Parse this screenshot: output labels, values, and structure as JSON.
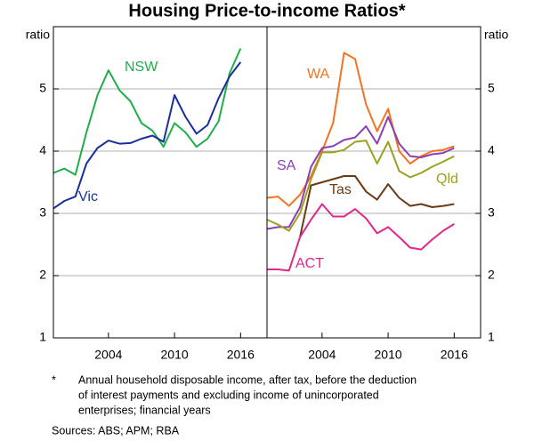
{
  "title": "Housing Price-to-income Ratios*",
  "footnote_marker": "*",
  "footnote": [
    "Annual household disposable income, after tax, before the deduction",
    "of interest payments and excluding income of unincorporated",
    "enterprises; financial years"
  ],
  "sources": "Sources:   ABS; APM; RBA",
  "chart_data": [
    {
      "type": "line",
      "ylabel": "ratio",
      "x": [
        1999,
        2000,
        2001,
        2002,
        2003,
        2004,
        2005,
        2006,
        2007,
        2008,
        2009,
        2010,
        2011,
        2012,
        2013,
        2014,
        2015,
        2016
      ],
      "xlim": [
        1999,
        2018.4
      ],
      "xticks": [
        2004,
        2010,
        2016
      ],
      "ylim": [
        1,
        6
      ],
      "yticks": [
        1,
        2,
        3,
        4,
        5
      ],
      "series": [
        {
          "name": "NSW",
          "color": "#1fae4b",
          "values": [
            3.65,
            3.72,
            3.62,
            4.3,
            4.9,
            5.3,
            4.98,
            4.8,
            4.45,
            4.33,
            4.07,
            4.45,
            4.3,
            4.07,
            4.2,
            4.48,
            5.25,
            5.65
          ]
        },
        {
          "name": "Vic",
          "color": "#1a2f9e",
          "values": [
            3.08,
            3.2,
            3.27,
            3.8,
            4.05,
            4.17,
            4.12,
            4.13,
            4.2,
            4.25,
            4.15,
            4.9,
            4.55,
            4.28,
            4.42,
            4.85,
            5.2,
            5.43
          ]
        }
      ]
    },
    {
      "type": "line",
      "ylabel": "ratio",
      "x": [
        1999,
        2000,
        2001,
        2002,
        2003,
        2004,
        2005,
        2006,
        2007,
        2008,
        2009,
        2010,
        2011,
        2012,
        2013,
        2014,
        2015,
        2016
      ],
      "xlim": [
        1999,
        2018.4
      ],
      "xticks": [
        2004,
        2010,
        2016
      ],
      "ylim": [
        1,
        6
      ],
      "yticks": [
        1,
        2,
        3,
        4,
        5
      ],
      "series": [
        {
          "name": "WA",
          "color": "#f47321",
          "values": [
            3.25,
            3.27,
            3.12,
            3.3,
            3.6,
            4.0,
            4.45,
            5.58,
            5.48,
            4.75,
            4.32,
            4.68,
            4.0,
            3.8,
            3.92,
            4.0,
            4.02,
            4.08
          ]
        },
        {
          "name": "SA",
          "color": "#8b3fb5",
          "values": [
            2.75,
            2.78,
            2.78,
            3.1,
            3.75,
            4.05,
            4.08,
            4.18,
            4.22,
            4.4,
            4.12,
            4.55,
            4.12,
            3.92,
            3.9,
            3.95,
            3.97,
            4.05
          ]
        },
        {
          "name": "Qld",
          "color": "#9ca11e",
          "values": [
            2.9,
            2.82,
            2.72,
            3.0,
            3.55,
            3.98,
            3.98,
            4.02,
            4.15,
            4.17,
            3.8,
            4.15,
            3.68,
            3.58,
            3.65,
            3.75,
            3.83,
            3.92
          ]
        },
        {
          "name": "Tas",
          "color": "#6b3a12",
          "values": [
            null,
            null,
            null,
            2.62,
            3.45,
            3.5,
            3.55,
            3.6,
            3.6,
            3.35,
            3.22,
            3.47,
            3.25,
            3.12,
            3.15,
            3.1,
            3.12,
            3.15
          ]
        },
        {
          "name": "ACT",
          "color": "#e0288a",
          "values": [
            2.1,
            2.1,
            2.08,
            2.62,
            2.9,
            3.15,
            2.95,
            2.95,
            3.07,
            2.92,
            2.68,
            2.78,
            2.62,
            2.45,
            2.42,
            2.58,
            2.72,
            2.83
          ]
        }
      ]
    }
  ]
}
